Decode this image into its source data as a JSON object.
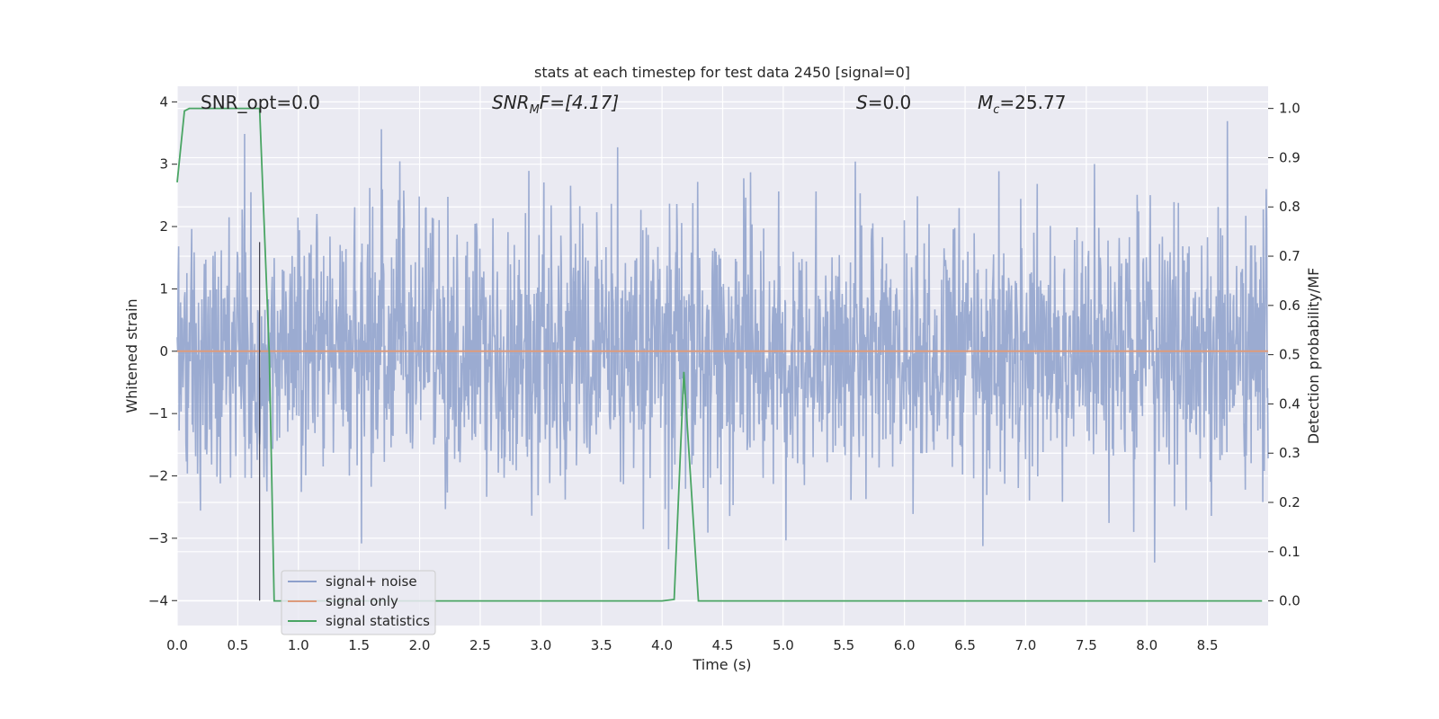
{
  "chart_data": {
    "type": "line",
    "title": "stats at each timestep for test data 2450 [signal=0]",
    "xlabel": "Time (s)",
    "ylabel": "Whitened strain",
    "y2label": "Detection probability/MF",
    "xlim": [
      0.0,
      9.0
    ],
    "ylim": [
      -4.4,
      4.25
    ],
    "y2lim": [
      -0.05,
      1.045
    ],
    "xticks": [
      "0.0",
      "0.5",
      "1.0",
      "1.5",
      "2.0",
      "2.5",
      "3.0",
      "3.5",
      "4.0",
      "4.5",
      "5.0",
      "5.5",
      "6.0",
      "6.5",
      "7.0",
      "7.5",
      "8.0",
      "8.5"
    ],
    "yticks": [
      "4",
      "3",
      "2",
      "1",
      "0",
      "−1",
      "−2",
      "−3",
      "−4"
    ],
    "y2ticks": [
      "1.0",
      "0.9",
      "0.8",
      "0.7",
      "0.6",
      "0.5",
      "0.4",
      "0.3",
      "0.2",
      "0.1",
      "0.0"
    ],
    "grid": true,
    "legend_position": "lower-left",
    "annotations": {
      "snr_opt": "SNR_opt=0.0",
      "snr_mf_main": "SNR",
      "snr_mf_sub": "M",
      "snr_mf_rest": "F=[4.17]",
      "s_italic": "S",
      "s_rest": "=0.0",
      "mc_main": "M",
      "mc_sub": "c",
      "mc_rest": "=25.77"
    },
    "marker_line_x": 0.68,
    "series": [
      {
        "name": "signal+ noise",
        "color": "#8da0cb",
        "axis": "left",
        "kind": "noise",
        "n_points": 2250,
        "approx_range": [
          -3.6,
          3.85
        ]
      },
      {
        "name": "signal only",
        "color": "#dd9b7c",
        "axis": "left",
        "x": [
          0.0,
          9.0
        ],
        "y": [
          0.0,
          0.0
        ]
      },
      {
        "name": "signal statistics",
        "color": "#4aa564",
        "axis": "right",
        "x": [
          0.0,
          0.06,
          0.1,
          0.2,
          0.3,
          0.4,
          0.5,
          0.6,
          0.68,
          0.76,
          0.8,
          1.0,
          2.0,
          3.0,
          4.0,
          4.1,
          4.18,
          4.3,
          5.0,
          6.0,
          7.0,
          8.0,
          8.95
        ],
        "y": [
          0.85,
          0.995,
          1.0,
          1.0,
          1.0,
          1.0,
          1.0,
          1.0,
          1.0,
          0.5,
          0.0,
          0.0,
          0.0,
          0.0,
          0.0,
          0.003,
          0.465,
          0.0,
          0.0,
          0.0,
          0.0,
          0.0,
          0.0
        ]
      }
    ]
  }
}
